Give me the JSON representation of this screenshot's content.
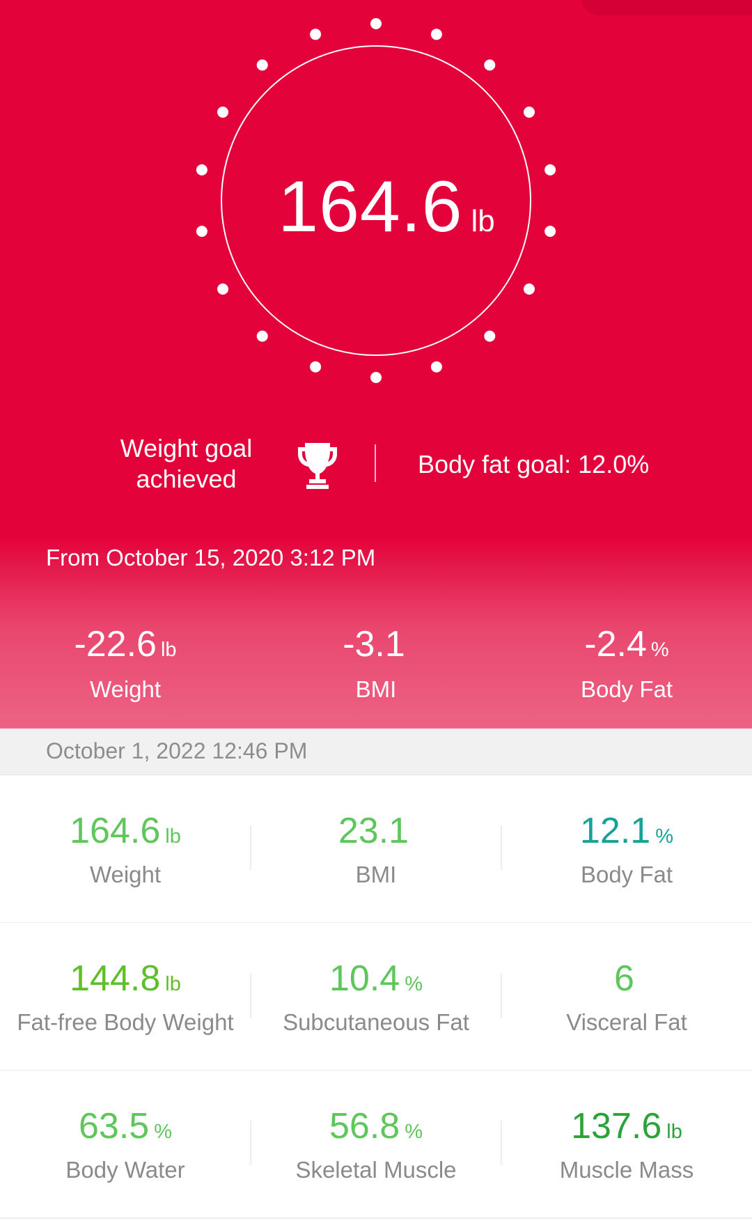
{
  "current": {
    "weight_value": "164.6",
    "weight_unit": "lb"
  },
  "goals": {
    "weight_goal_line1": "Weight goal",
    "weight_goal_line2": "achieved",
    "body_fat_goal": "Body fat goal: 12.0%"
  },
  "since": "From October 15, 2020 3:12 PM",
  "changes": [
    {
      "value": "-22.6",
      "unit": "lb",
      "label": "Weight"
    },
    {
      "value": "-3.1",
      "unit": "",
      "label": "BMI"
    },
    {
      "value": "-2.4",
      "unit": "%",
      "label": "Body Fat"
    }
  ],
  "measurement_date": "October 1, 2022 12:46 PM",
  "metrics": [
    [
      {
        "value": "164.6",
        "unit": "lb",
        "label": "Weight",
        "color": "#5ec65a"
      },
      {
        "value": "23.1",
        "unit": "",
        "label": "BMI",
        "color": "#5ec65a"
      },
      {
        "value": "12.1",
        "unit": "%",
        "label": "Body Fat",
        "color": "#14a396"
      }
    ],
    [
      {
        "value": "144.8",
        "unit": "lb",
        "label": "Fat-free Body Weight",
        "color": "#5fbe2c"
      },
      {
        "value": "10.4",
        "unit": "%",
        "label": "Subcutaneous Fat",
        "color": "#5ec65a"
      },
      {
        "value": "6",
        "unit": "",
        "label": "Visceral Fat",
        "color": "#5ec65a"
      }
    ],
    [
      {
        "value": "63.5",
        "unit": "%",
        "label": "Body Water",
        "color": "#5ec65a"
      },
      {
        "value": "56.8",
        "unit": "%",
        "label": "Skeletal Muscle",
        "color": "#5ec65a"
      },
      {
        "value": "137.6",
        "unit": "lb",
        "label": "Muscle Mass",
        "color": "#2aa33a"
      }
    ]
  ],
  "colors": {
    "hero_red": "#e3023a",
    "label_gray": "#8a8a8a"
  },
  "icons": {
    "goal": "trophy-icon"
  }
}
